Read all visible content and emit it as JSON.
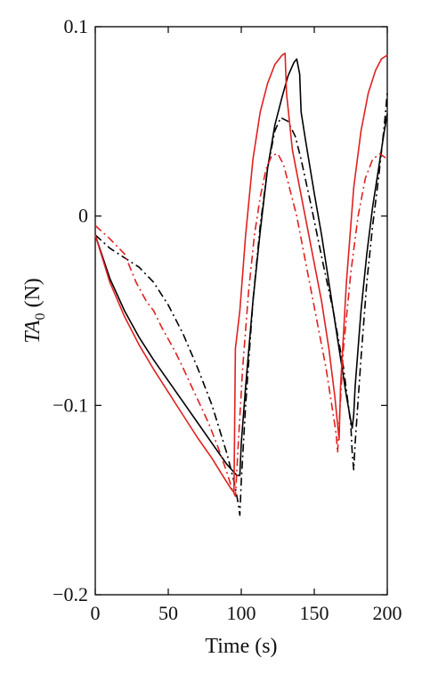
{
  "chart_data": {
    "type": "line",
    "title": "",
    "xlabel": "Time (s)",
    "ylabel": {
      "text": "TA",
      "subscript": "0",
      "unit": " (N)"
    },
    "xlim": [
      0,
      200
    ],
    "ylim": [
      -0.2,
      0.1
    ],
    "x_ticks": [
      0,
      50,
      100,
      150,
      200
    ],
    "x_tick_labels": [
      "0",
      "50",
      "100",
      "150",
      "200"
    ],
    "y_ticks": [
      -0.2,
      -0.1,
      0,
      0.1
    ],
    "y_tick_labels": [
      "−0.2",
      "−0.1",
      "0",
      "0.1"
    ],
    "grid": false,
    "legend": "none",
    "series": [
      {
        "color": "#000000",
        "style": "solid",
        "points": [
          [
            0,
            -0.01
          ],
          [
            10,
            -0.033
          ],
          [
            20,
            -0.05
          ],
          [
            30,
            -0.064
          ],
          [
            40,
            -0.076
          ],
          [
            50,
            -0.087
          ],
          [
            60,
            -0.098
          ],
          [
            70,
            -0.109
          ],
          [
            80,
            -0.12
          ],
          [
            90,
            -0.131
          ],
          [
            97,
            -0.137
          ],
          [
            99,
            -0.137
          ],
          [
            100,
            -0.12
          ],
          [
            103,
            -0.09
          ],
          [
            108,
            -0.045
          ],
          [
            113,
            -0.008
          ],
          [
            118,
            0.025
          ],
          [
            123,
            0.048
          ],
          [
            128,
            0.063
          ],
          [
            132,
            0.074
          ],
          [
            136,
            0.081
          ],
          [
            138,
            0.083
          ],
          [
            140,
            0.075
          ],
          [
            141,
            0.055
          ],
          [
            144,
            0.04
          ],
          [
            150,
            0.012
          ],
          [
            155,
            -0.01
          ],
          [
            160,
            -0.035
          ],
          [
            166,
            -0.065
          ],
          [
            172,
            -0.095
          ],
          [
            175,
            -0.108
          ],
          [
            176,
            -0.112
          ],
          [
            177,
            -0.105
          ],
          [
            178,
            -0.09
          ],
          [
            182,
            -0.05
          ],
          [
            186,
            -0.02
          ],
          [
            190,
            0.005
          ],
          [
            194,
            0.025
          ],
          [
            198,
            0.045
          ],
          [
            200,
            0.054
          ]
        ]
      },
      {
        "color": "#000000",
        "style": "dashdot",
        "points": [
          [
            0,
            -0.01
          ],
          [
            10,
            -0.017
          ],
          [
            20,
            -0.022
          ],
          [
            30,
            -0.027
          ],
          [
            40,
            -0.035
          ],
          [
            50,
            -0.047
          ],
          [
            60,
            -0.062
          ],
          [
            70,
            -0.08
          ],
          [
            80,
            -0.1
          ],
          [
            90,
            -0.125
          ],
          [
            95,
            -0.14
          ],
          [
            98,
            -0.152
          ],
          [
            99,
            -0.158
          ],
          [
            100,
            -0.14
          ],
          [
            103,
            -0.1
          ],
          [
            108,
            -0.045
          ],
          [
            113,
            -0.005
          ],
          [
            118,
            0.025
          ],
          [
            123,
            0.045
          ],
          [
            127,
            0.052
          ],
          [
            132,
            0.05
          ],
          [
            137,
            0.042
          ],
          [
            141,
            0.03
          ],
          [
            148,
            0.005
          ],
          [
            156,
            -0.025
          ],
          [
            163,
            -0.05
          ],
          [
            170,
            -0.08
          ],
          [
            175,
            -0.11
          ],
          [
            176,
            -0.125
          ],
          [
            177,
            -0.134
          ],
          [
            178,
            -0.12
          ],
          [
            182,
            -0.075
          ],
          [
            186,
            -0.035
          ],
          [
            190,
            -0.005
          ],
          [
            194,
            0.02
          ],
          [
            198,
            0.048
          ],
          [
            200,
            0.065
          ]
        ]
      },
      {
        "color": "#e02020",
        "style": "solid",
        "points": [
          [
            0,
            -0.01
          ],
          [
            10,
            -0.035
          ],
          [
            20,
            -0.053
          ],
          [
            30,
            -0.068
          ],
          [
            40,
            -0.081
          ],
          [
            50,
            -0.093
          ],
          [
            60,
            -0.105
          ],
          [
            70,
            -0.117
          ],
          [
            80,
            -0.128
          ],
          [
            88,
            -0.138
          ],
          [
            93,
            -0.144
          ],
          [
            95,
            -0.146
          ],
          [
            96,
            -0.07
          ],
          [
            99,
            -0.05
          ],
          [
            103,
            -0.01
          ],
          [
            108,
            0.03
          ],
          [
            113,
            0.055
          ],
          [
            118,
            0.07
          ],
          [
            123,
            0.08
          ],
          [
            128,
            0.085
          ],
          [
            130,
            0.086
          ],
          [
            131,
            0.065
          ],
          [
            135,
            0.035
          ],
          [
            140,
            0.015
          ],
          [
            145,
            -0.005
          ],
          [
            150,
            -0.025
          ],
          [
            155,
            -0.045
          ],
          [
            160,
            -0.07
          ],
          [
            164,
            -0.095
          ],
          [
            166,
            -0.11
          ],
          [
            167,
            -0.118
          ],
          [
            168,
            -0.09
          ],
          [
            172,
            -0.035
          ],
          [
            177,
            0.015
          ],
          [
            182,
            0.045
          ],
          [
            187,
            0.065
          ],
          [
            192,
            0.077
          ],
          [
            196,
            0.083
          ],
          [
            200,
            0.085
          ]
        ]
      },
      {
        "color": "#e02020",
        "style": "dashdot",
        "points": [
          [
            0,
            -0.005
          ],
          [
            10,
            -0.012
          ],
          [
            20,
            -0.02
          ],
          [
            28,
            -0.035
          ],
          [
            35,
            -0.045
          ],
          [
            40,
            -0.05
          ],
          [
            45,
            -0.058
          ],
          [
            50,
            -0.065
          ],
          [
            55,
            -0.072
          ],
          [
            60,
            -0.08
          ],
          [
            66,
            -0.09
          ],
          [
            72,
            -0.1
          ],
          [
            78,
            -0.11
          ],
          [
            84,
            -0.122
          ],
          [
            90,
            -0.135
          ],
          [
            94,
            -0.145
          ],
          [
            96,
            -0.148
          ],
          [
            98,
            -0.12
          ],
          [
            101,
            -0.08
          ],
          [
            105,
            -0.04
          ],
          [
            109,
            -0.01
          ],
          [
            113,
            0.01
          ],
          [
            117,
            0.025
          ],
          [
            121,
            0.032
          ],
          [
            125,
            0.033
          ],
          [
            129,
            0.027
          ],
          [
            133,
            0.015
          ],
          [
            138,
            0.0
          ],
          [
            143,
            -0.02
          ],
          [
            148,
            -0.04
          ],
          [
            153,
            -0.06
          ],
          [
            158,
            -0.08
          ],
          [
            162,
            -0.1
          ],
          [
            165,
            -0.115
          ],
          [
            166,
            -0.125
          ],
          [
            167,
            -0.11
          ],
          [
            170,
            -0.07
          ],
          [
            175,
            -0.03
          ],
          [
            180,
            0.0
          ],
          [
            185,
            0.02
          ],
          [
            190,
            0.03
          ],
          [
            195,
            0.033
          ],
          [
            200,
            0.03
          ]
        ]
      }
    ]
  }
}
